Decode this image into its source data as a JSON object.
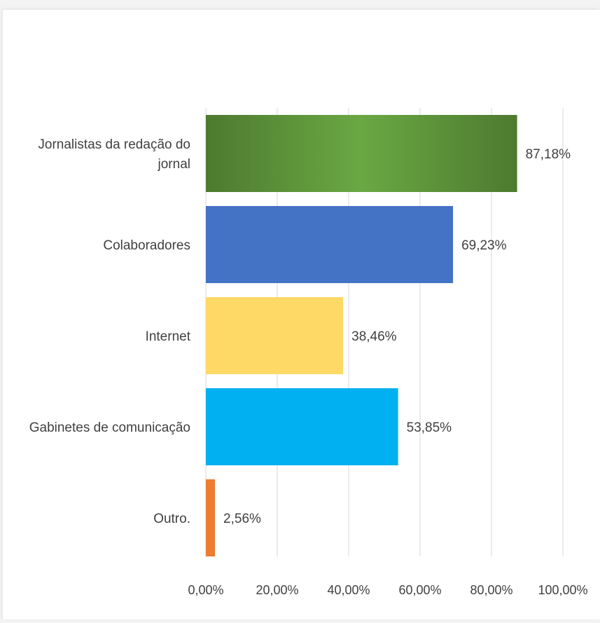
{
  "chart_data": {
    "type": "bar",
    "orientation": "horizontal",
    "title": "",
    "xlabel": "",
    "ylabel": "",
    "categories": [
      [
        "Jornalistas da redação do",
        "jornal"
      ],
      [
        "Colaboradores"
      ],
      [
        "Internet"
      ],
      [
        "Gabinetes de comunicação"
      ],
      [
        "Outro."
      ]
    ],
    "values": [
      87.18,
      69.23,
      38.46,
      53.85,
      2.56
    ],
    "value_labels": [
      "87,18%",
      "69,23%",
      "38,46%",
      "53,85%",
      "2,56%"
    ],
    "colors": [
      "#5f9a3c",
      "#4472c4",
      "#ffd966",
      "#00b0f0",
      "#ed7d31"
    ],
    "xlim": [
      0,
      100
    ],
    "x_ticks": [
      0,
      20,
      40,
      60,
      80,
      100
    ],
    "x_tick_labels": [
      "0,00%",
      "20,00%",
      "40,00%",
      "60,00%",
      "80,00%",
      "100,00%"
    ],
    "grid": true,
    "legend": "none"
  }
}
